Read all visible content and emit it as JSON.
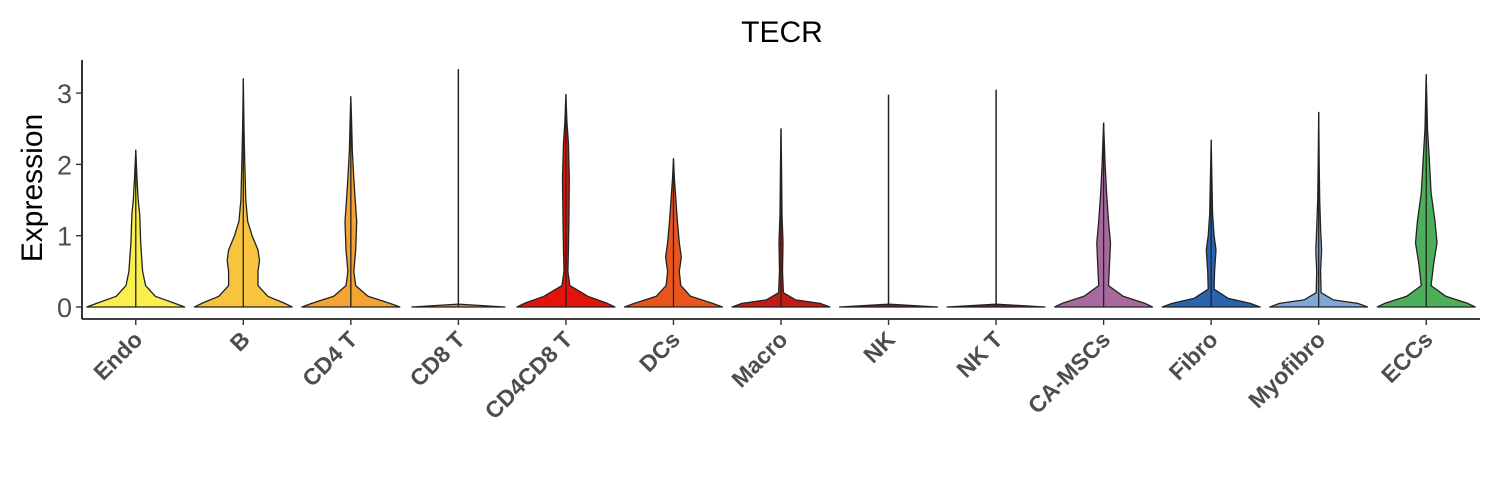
{
  "chart_data": {
    "type": "violin",
    "title": "TECR",
    "xlabel": "",
    "ylabel": "Expression",
    "ylim": [
      -0.18,
      3.5
    ],
    "yticks": [
      0,
      1,
      2,
      3
    ],
    "grid": false,
    "legend": "none",
    "categories": [
      "Endo",
      "B",
      "CD4 T",
      "CD8 T",
      "CD4CD8 T",
      "DCs",
      "Macro",
      "NK",
      "NK T",
      "CA-MSCs",
      "Fibro",
      "Myofibro",
      "ECCs"
    ],
    "colors": [
      "#F9F04E",
      "#F8C43E",
      "#F5A434",
      "#F08A2C",
      "#E3120B",
      "#E8561E",
      "#C41A17",
      "#8B1A1A",
      "#7A1E1E",
      "#A86A9E",
      "#2A63AE",
      "#7EA9D6",
      "#4CAF5A"
    ],
    "max_values": [
      2.2,
      3.2,
      2.95,
      3.33,
      2.98,
      2.08,
      2.5,
      2.97,
      3.04,
      2.58,
      2.34,
      2.73,
      3.26
    ],
    "density_profiles": [
      [
        [
          0,
          1
        ],
        [
          0.05,
          0.8
        ],
        [
          0.15,
          0.4
        ],
        [
          0.3,
          0.2
        ],
        [
          0.5,
          0.14
        ],
        [
          0.7,
          0.12
        ],
        [
          0.9,
          0.1
        ],
        [
          1.1,
          0.09
        ],
        [
          1.3,
          0.08
        ],
        [
          1.5,
          0.05
        ],
        [
          1.8,
          0.025
        ],
        [
          2.2,
          0
        ]
      ],
      [
        [
          0,
          1
        ],
        [
          0.05,
          0.85
        ],
        [
          0.15,
          0.5
        ],
        [
          0.3,
          0.3
        ],
        [
          0.5,
          0.3
        ],
        [
          0.65,
          0.33
        ],
        [
          0.8,
          0.3
        ],
        [
          1.0,
          0.18
        ],
        [
          1.2,
          0.09
        ],
        [
          1.5,
          0.05
        ],
        [
          2.0,
          0.03
        ],
        [
          2.5,
          0.015
        ],
        [
          3.2,
          0
        ]
      ],
      [
        [
          0,
          1
        ],
        [
          0.05,
          0.8
        ],
        [
          0.15,
          0.35
        ],
        [
          0.3,
          0.1
        ],
        [
          0.5,
          0.06
        ],
        [
          0.8,
          0.1
        ],
        [
          1.2,
          0.12
        ],
        [
          1.4,
          0.1
        ],
        [
          1.8,
          0.06
        ],
        [
          2.2,
          0.03
        ],
        [
          2.6,
          0.015
        ],
        [
          2.95,
          0
        ]
      ],
      [
        [
          0,
          0.95
        ],
        [
          0.04,
          0
        ],
        [
          3.33,
          0
        ]
      ],
      [
        [
          0,
          1
        ],
        [
          0.05,
          0.85
        ],
        [
          0.15,
          0.45
        ],
        [
          0.3,
          0.08
        ],
        [
          0.5,
          0.04
        ],
        [
          0.8,
          0.05
        ],
        [
          1.2,
          0.06
        ],
        [
          1.8,
          0.07
        ],
        [
          2.3,
          0.05
        ],
        [
          2.6,
          0.02
        ],
        [
          2.98,
          0
        ]
      ],
      [
        [
          0,
          1
        ],
        [
          0.05,
          0.8
        ],
        [
          0.15,
          0.35
        ],
        [
          0.3,
          0.15
        ],
        [
          0.5,
          0.12
        ],
        [
          0.7,
          0.16
        ],
        [
          0.9,
          0.12
        ],
        [
          1.2,
          0.08
        ],
        [
          1.5,
          0.05
        ],
        [
          1.8,
          0.02
        ],
        [
          2.08,
          0
        ]
      ],
      [
        [
          0,
          1
        ],
        [
          0.05,
          0.8
        ],
        [
          0.1,
          0.3
        ],
        [
          0.2,
          0.05
        ],
        [
          0.5,
          0.03
        ],
        [
          0.9,
          0.04
        ],
        [
          1.3,
          0.02
        ],
        [
          2.0,
          0.01
        ],
        [
          2.5,
          0
        ]
      ],
      [
        [
          0,
          1
        ],
        [
          0.04,
          0
        ],
        [
          2.97,
          0
        ]
      ],
      [
        [
          0,
          1
        ],
        [
          0.04,
          0
        ],
        [
          3.04,
          0
        ]
      ],
      [
        [
          0,
          1
        ],
        [
          0.05,
          0.85
        ],
        [
          0.15,
          0.4
        ],
        [
          0.3,
          0.1
        ],
        [
          0.6,
          0.12
        ],
        [
          0.9,
          0.14
        ],
        [
          1.2,
          0.1
        ],
        [
          1.6,
          0.06
        ],
        [
          2.0,
          0.03
        ],
        [
          2.58,
          0
        ]
      ],
      [
        [
          0,
          1
        ],
        [
          0.05,
          0.8
        ],
        [
          0.12,
          0.35
        ],
        [
          0.25,
          0.06
        ],
        [
          0.5,
          0.07
        ],
        [
          0.8,
          0.1
        ],
        [
          1.0,
          0.06
        ],
        [
          1.3,
          0.03
        ],
        [
          1.8,
          0.015
        ],
        [
          2.34,
          0
        ]
      ],
      [
        [
          0,
          1
        ],
        [
          0.05,
          0.8
        ],
        [
          0.1,
          0.3
        ],
        [
          0.2,
          0.05
        ],
        [
          0.5,
          0.04
        ],
        [
          0.8,
          0.06
        ],
        [
          1.1,
          0.04
        ],
        [
          1.5,
          0.02
        ],
        [
          2.0,
          0.01
        ],
        [
          2.73,
          0
        ]
      ],
      [
        [
          0,
          1
        ],
        [
          0.05,
          0.85
        ],
        [
          0.15,
          0.4
        ],
        [
          0.3,
          0.1
        ],
        [
          0.6,
          0.15
        ],
        [
          0.9,
          0.22
        ],
        [
          1.2,
          0.18
        ],
        [
          1.6,
          0.1
        ],
        [
          2.1,
          0.06
        ],
        [
          2.5,
          0.025
        ],
        [
          3.26,
          0
        ]
      ]
    ]
  }
}
